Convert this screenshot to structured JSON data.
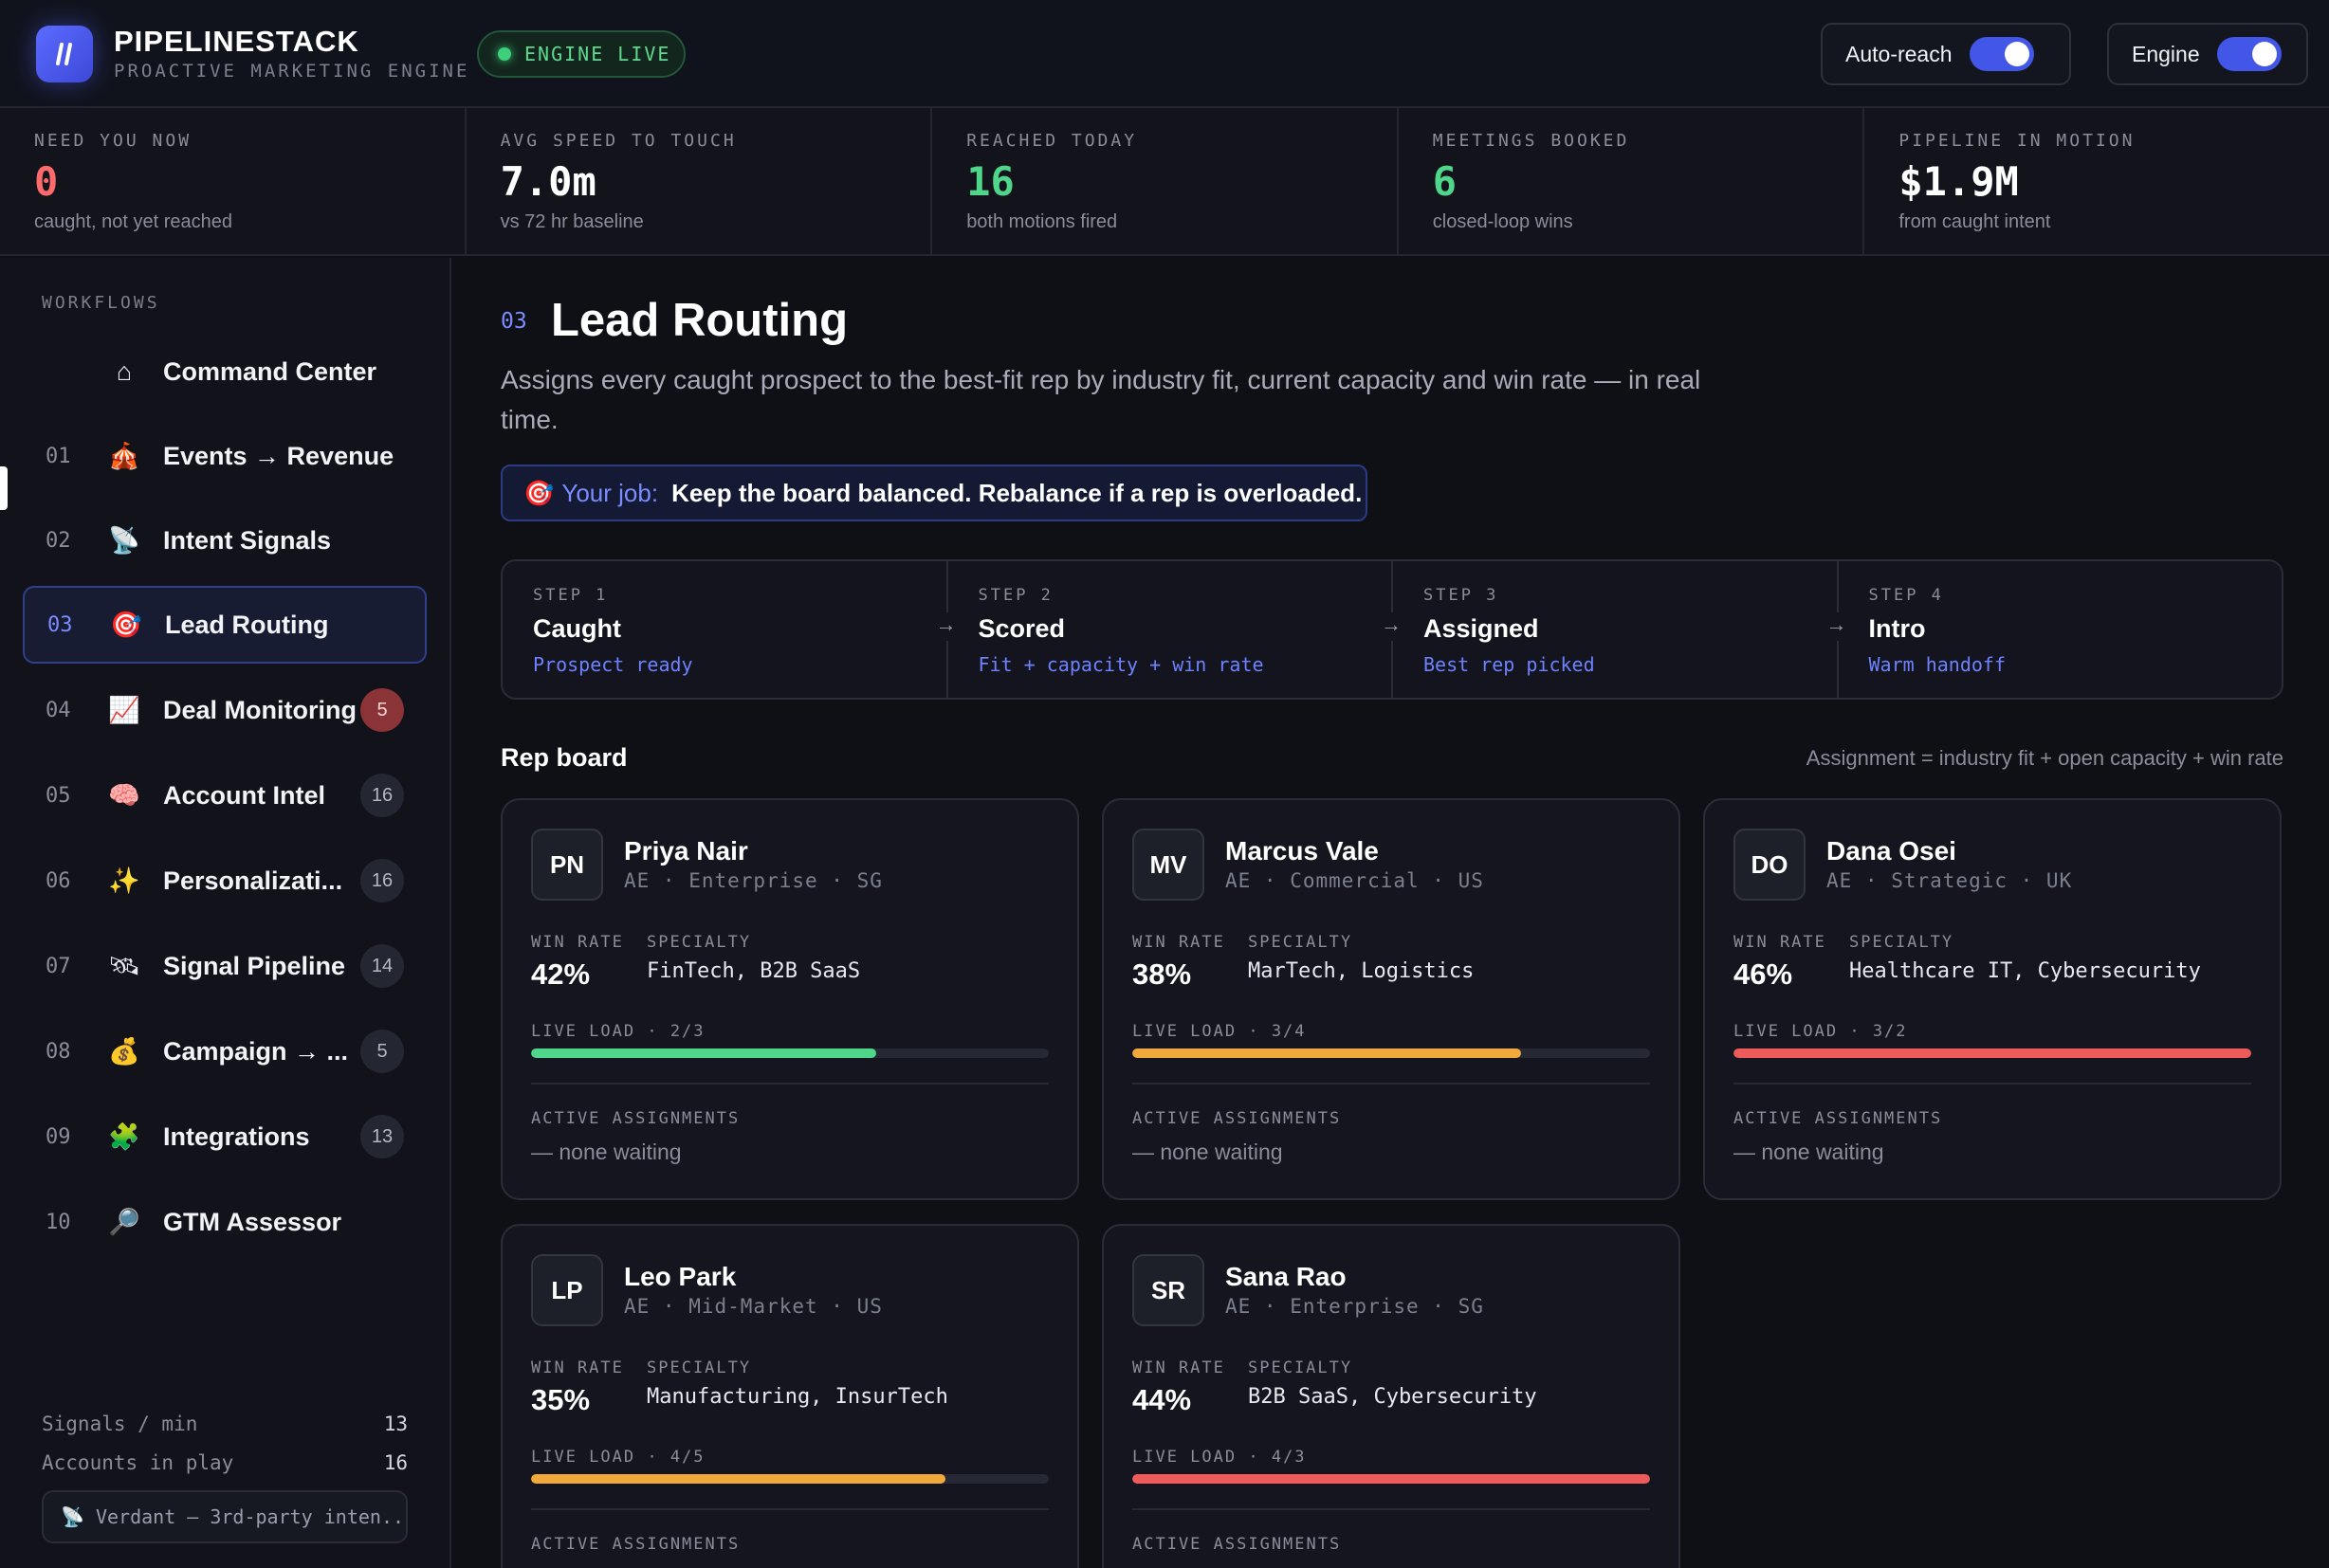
{
  "header": {
    "brand_name": "PIPELINESTACK",
    "brand_sub": "PROACTIVE MARKETING ENGINE",
    "engine_status": "ENGINE LIVE",
    "autoreach_label": "Auto-reach",
    "engine_label": "Engine",
    "autoreach_on": true,
    "engine_on": true
  },
  "stats": [
    {
      "label": "NEED YOU NOW",
      "value": "0",
      "sub": "caught, not yet reached",
      "color": "#ff6b6b"
    },
    {
      "label": "AVG SPEED TO TOUCH",
      "value": "7.0m",
      "sub": "vs 72 hr baseline",
      "color": "#ffffff"
    },
    {
      "label": "REACHED TODAY",
      "value": "16",
      "sub": "both motions fired",
      "color": "#4fd68a"
    },
    {
      "label": "MEETINGS BOOKED",
      "value": "6",
      "sub": "closed-loop wins",
      "color": "#4fd68a"
    },
    {
      "label": "PIPELINE IN MOTION",
      "value": "$1.9M",
      "sub": "from caught intent",
      "color": "#ffffff"
    }
  ],
  "sidebar": {
    "heading": "WORKFLOWS",
    "items": [
      {
        "num": "",
        "icon": "⌂",
        "label": "Command Center",
        "badge": ""
      },
      {
        "num": "01",
        "icon": "🎪",
        "label": "Events → Revenue",
        "badge": ""
      },
      {
        "num": "02",
        "icon": "📡",
        "label": "Intent Signals",
        "badge": ""
      },
      {
        "num": "03",
        "icon": "🎯",
        "label": "Lead Routing",
        "badge": ""
      },
      {
        "num": "04",
        "icon": "📈",
        "label": "Deal Monitoring",
        "badge": "5"
      },
      {
        "num": "05",
        "icon": "🧠",
        "label": "Account Intel",
        "badge": "16"
      },
      {
        "num": "06",
        "icon": "✨",
        "label": "Personalizati...",
        "badge": "16"
      },
      {
        "num": "07",
        "icon": "🛰",
        "label": "Signal Pipeline",
        "badge": "14"
      },
      {
        "num": "08",
        "icon": "💰",
        "label": "Campaign → ...",
        "badge": "5"
      },
      {
        "num": "09",
        "icon": "🧩",
        "label": "Integrations",
        "badge": "13"
      },
      {
        "num": "10",
        "icon": "🔎",
        "label": "GTM Assessor",
        "badge": ""
      }
    ],
    "footer": {
      "signals_label": "Signals / min",
      "signals_value": "13",
      "accounts_label": "Accounts in play",
      "accounts_value": "16",
      "source": "📡 Verdant — 3rd-party inten..."
    }
  },
  "page": {
    "num": "03",
    "title": "Lead Routing",
    "description": "Assigns every caught prospect to the best-fit rep by industry fit, current capacity and win rate — in real time.",
    "job_icon": "🎯",
    "job_label": "Your job:",
    "job_text": "Keep the board balanced. Rebalance if a rep is overloaded."
  },
  "steps": [
    {
      "label": "STEP 1",
      "title": "Caught",
      "sub": "Prospect ready"
    },
    {
      "label": "STEP 2",
      "title": "Scored",
      "sub": "Fit + capacity + win rate"
    },
    {
      "label": "STEP 3",
      "title": "Assigned",
      "sub": "Best rep picked"
    },
    {
      "label": "STEP 4",
      "title": "Intro",
      "sub": "Warm handoff"
    }
  ],
  "rep_board": {
    "heading": "Rep board",
    "legend": "Assignment = industry fit + open capacity + win rate",
    "win_rate_label": "WIN RATE",
    "specialty_label": "SPECIALTY",
    "active_label": "ACTIVE ASSIGNMENTS",
    "reps": [
      {
        "initials": "PN",
        "name": "Priya Nair",
        "meta": "AE · Enterprise · SG",
        "win_rate": "42%",
        "specialty": "FinTech, B2B SaaS",
        "load_text": "LIVE LOAD · 2/3",
        "load_fraction": 0.667,
        "load_color": "#4fd68a",
        "assignments": "— none waiting"
      },
      {
        "initials": "MV",
        "name": "Marcus Vale",
        "meta": "AE · Commercial · US",
        "win_rate": "38%",
        "specialty": "MarTech, Logistics",
        "load_text": "LIVE LOAD · 3/4",
        "load_fraction": 0.75,
        "load_color": "#f0a93a",
        "assignments": "— none waiting"
      },
      {
        "initials": "DO",
        "name": "Dana Osei",
        "meta": "AE · Strategic · UK",
        "win_rate": "46%",
        "specialty": "Healthcare IT, Cybersecurity",
        "load_text": "LIVE LOAD · 3/2",
        "load_fraction": 1.0,
        "load_color": "#ef5a5a",
        "assignments": "— none waiting"
      },
      {
        "initials": "LP",
        "name": "Leo Park",
        "meta": "AE · Mid-Market · US",
        "win_rate": "35%",
        "specialty": "Manufacturing, InsurTech",
        "load_text": "LIVE LOAD · 4/5",
        "load_fraction": 0.8,
        "load_color": "#f0a93a",
        "assignments": ""
      },
      {
        "initials": "SR",
        "name": "Sana Rao",
        "meta": "AE · Enterprise · SG",
        "win_rate": "44%",
        "specialty": "B2B SaaS, Cybersecurity",
        "load_text": "LIVE LOAD · 4/3",
        "load_fraction": 1.0,
        "load_color": "#ef5a5a",
        "assignments": ""
      }
    ]
  }
}
